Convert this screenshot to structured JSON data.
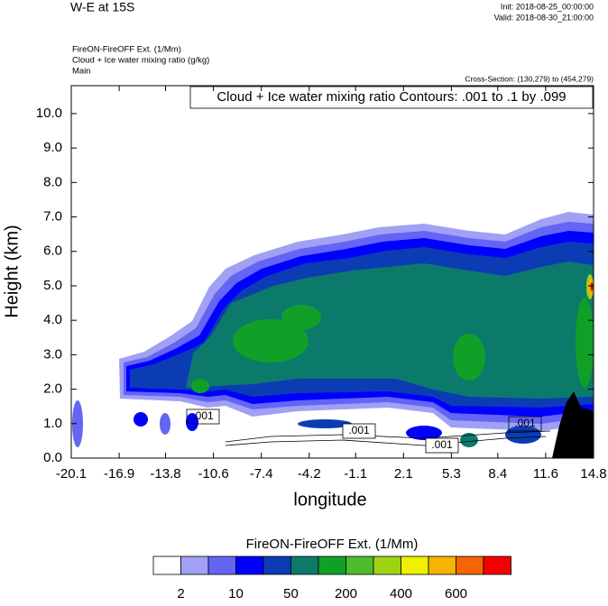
{
  "chart_data": {
    "type": "contour",
    "title": "W-E at 15S",
    "init": "Init: 2018-08-25_00:00:00",
    "valid": "Valid: 2018-08-30_21:00:00",
    "field_lines": [
      "FireON-FireOFF Ext.   (1/Mm)",
      "Cloud + Ice water mixing ratio   (g/kg)",
      "Main"
    ],
    "cross_section": "Cross-Section: (130,279) to (454,279)",
    "contour_info": "Cloud + Ice water mixing ratio Contours: .001 to .1 by .099",
    "xlabel": "longitude",
    "ylabel": "Height (km)",
    "xlim": [
      -20.1,
      14.8
    ],
    "ylim": [
      0,
      10.81
    ],
    "xticks": [
      -20.1,
      -16.9,
      -13.8,
      -10.6,
      -7.4,
      -4.2,
      -1.1,
      2.1,
      5.3,
      8.4,
      11.6,
      14.8
    ],
    "yticks": [
      {
        "value": 0,
        "label": "0.0"
      },
      {
        "value": 1,
        "label": "1.0"
      },
      {
        "value": 2,
        "label": "2.0"
      },
      {
        "value": 3,
        "label": "3.0"
      },
      {
        "value": 4,
        "label": "4.0"
      },
      {
        "value": 5,
        "label": "5.0"
      },
      {
        "value": 6,
        "label": "6.0"
      },
      {
        "value": 7,
        "label": "7.0"
      },
      {
        "value": 8,
        "label": "8.0"
      },
      {
        "value": 9,
        "label": "9.0"
      },
      {
        "value": 10,
        "label": "10.0"
      }
    ],
    "contour_labels": [
      ".001",
      ".001",
      ".001",
      ".001"
    ],
    "colorbar": {
      "title": "FireON-FireOFF Ext.  (1/Mm)",
      "colors": [
        "#ffffff",
        "#a0a0f5",
        "#6464f5",
        "#0000ff",
        "#0c3cb4",
        "#0c7a6a",
        "#10a028",
        "#4cbc2c",
        "#a0d214",
        "#f0f000",
        "#f5b400",
        "#f56400",
        "#f50000"
      ],
      "levels": [
        2,
        null,
        10,
        null,
        50,
        null,
        200,
        null,
        400,
        null,
        600,
        null
      ]
    }
  }
}
